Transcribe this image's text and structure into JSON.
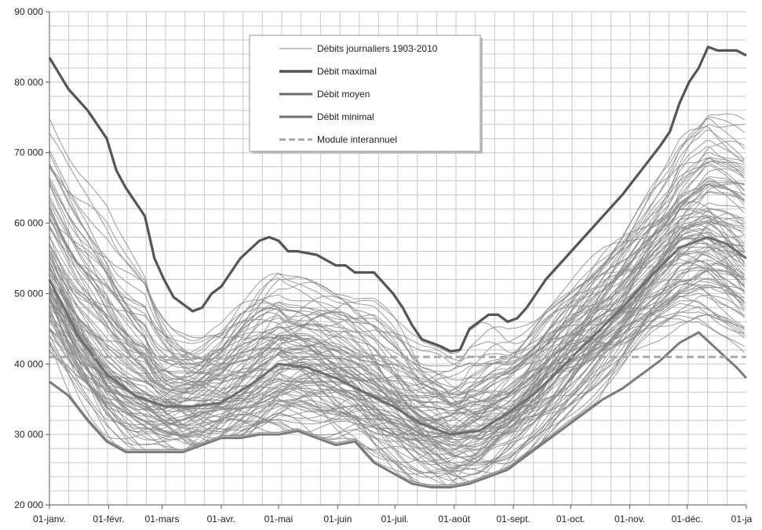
{
  "chart_data": {
    "type": "line",
    "title": "",
    "xlabel": "",
    "ylabel": "",
    "ylim": [
      20000,
      90000
    ],
    "y_ticks": [
      {
        "value": 20000,
        "label": "20 000"
      },
      {
        "value": 30000,
        "label": "30 000"
      },
      {
        "value": 40000,
        "label": "40 000"
      },
      {
        "value": 50000,
        "label": "50 000"
      },
      {
        "value": 60000,
        "label": "60 000"
      },
      {
        "value": 70000,
        "label": "70 000"
      },
      {
        "value": 80000,
        "label": "80 000"
      },
      {
        "value": 90000,
        "label": "90 000"
      }
    ],
    "x_ticks": [
      {
        "day": 0,
        "label": "01-janv."
      },
      {
        "day": 31,
        "label": "01-févr."
      },
      {
        "day": 59,
        "label": "01-mars"
      },
      {
        "day": 90,
        "label": "01-avr."
      },
      {
        "day": 120,
        "label": "01-mai"
      },
      {
        "day": 151,
        "label": "01-juin"
      },
      {
        "day": 181,
        "label": "01-juil."
      },
      {
        "day": 212,
        "label": "01-août"
      },
      {
        "day": 243,
        "label": "01-sept."
      },
      {
        "day": 273,
        "label": "01-oct."
      },
      {
        "day": 304,
        "label": "01-nov."
      },
      {
        "day": 334,
        "label": "01-déc."
      },
      {
        "day": 365,
        "label": "01-ja"
      }
    ],
    "grid": true,
    "legend_position": "top-center",
    "legend": [
      {
        "label": "Débits journaliers 1903-2010",
        "style": "thin"
      },
      {
        "label": "Débit maximal",
        "style": "thick"
      },
      {
        "label": "Débit moyen",
        "style": "medium"
      },
      {
        "label": "Débit minimal",
        "style": "medium"
      },
      {
        "label": "Module interannuel",
        "style": "dashed"
      }
    ],
    "colors": {
      "daily": "#8a8a8a",
      "max": "#555555",
      "mean": "#6e6e6e",
      "min": "#7a7a7a",
      "module": "#a8a8a8",
      "grid": "#c8c8c8"
    },
    "series": [
      {
        "name": "Débit maximal",
        "x": [
          0,
          10,
          20,
          30,
          35,
          40,
          50,
          55,
          60,
          65,
          70,
          75,
          80,
          85,
          90,
          95,
          100,
          110,
          115,
          120,
          125,
          130,
          140,
          150,
          155,
          160,
          170,
          180,
          185,
          190,
          195,
          200,
          205,
          210,
          215,
          220,
          225,
          230,
          235,
          240,
          245,
          250,
          255,
          260,
          270,
          280,
          290,
          300,
          310,
          320,
          325,
          330,
          335,
          340,
          345,
          350,
          355,
          360,
          365
        ],
        "y": [
          83500,
          79000,
          76000,
          72000,
          67500,
          65000,
          61000,
          55000,
          52000,
          49500,
          48500,
          47500,
          48000,
          50000,
          51000,
          53000,
          55000,
          57500,
          58000,
          57500,
          56000,
          56000,
          55500,
          54000,
          54000,
          53000,
          53000,
          50000,
          48000,
          45500,
          43500,
          43000,
          42500,
          41800,
          42000,
          45000,
          46000,
          47000,
          47000,
          46000,
          46500,
          48000,
          50000,
          52000,
          55000,
          58000,
          61000,
          64000,
          67500,
          71000,
          73000,
          77000,
          80000,
          82000,
          85000,
          84500,
          84500,
          84500,
          83800
        ]
      },
      {
        "name": "Débit moyen",
        "x": [
          0,
          15,
          30,
          45,
          60,
          75,
          90,
          105,
          120,
          135,
          150,
          165,
          180,
          195,
          210,
          225,
          240,
          255,
          270,
          285,
          300,
          315,
          330,
          345,
          355,
          365
        ],
        "y": [
          52000,
          44000,
          38500,
          35500,
          34000,
          34000,
          34500,
          37000,
          40000,
          39500,
          38000,
          36000,
          34000,
          31500,
          30000,
          30500,
          33000,
          36000,
          40000,
          44000,
          48000,
          52500,
          56500,
          58000,
          57000,
          55000
        ]
      },
      {
        "name": "Débit minimal",
        "x": [
          0,
          10,
          20,
          30,
          40,
          50,
          60,
          70,
          80,
          90,
          100,
          110,
          120,
          130,
          140,
          150,
          160,
          170,
          180,
          190,
          200,
          210,
          220,
          230,
          240,
          250,
          260,
          270,
          280,
          290,
          300,
          310,
          320,
          330,
          340,
          350,
          360,
          365
        ],
        "y": [
          37500,
          35500,
          32000,
          29000,
          27500,
          27500,
          27500,
          27500,
          28500,
          29500,
          29500,
          30000,
          30000,
          30500,
          29500,
          28500,
          29000,
          26000,
          24500,
          23000,
          22500,
          22500,
          23000,
          24000,
          25000,
          27000,
          29000,
          31000,
          33000,
          35000,
          36500,
          38500,
          40500,
          43000,
          44500,
          42000,
          39500,
          38000
        ]
      },
      {
        "name": "Module interannuel",
        "x": [
          0,
          365
        ],
        "y": [
          41000,
          41000
        ]
      }
    ]
  }
}
